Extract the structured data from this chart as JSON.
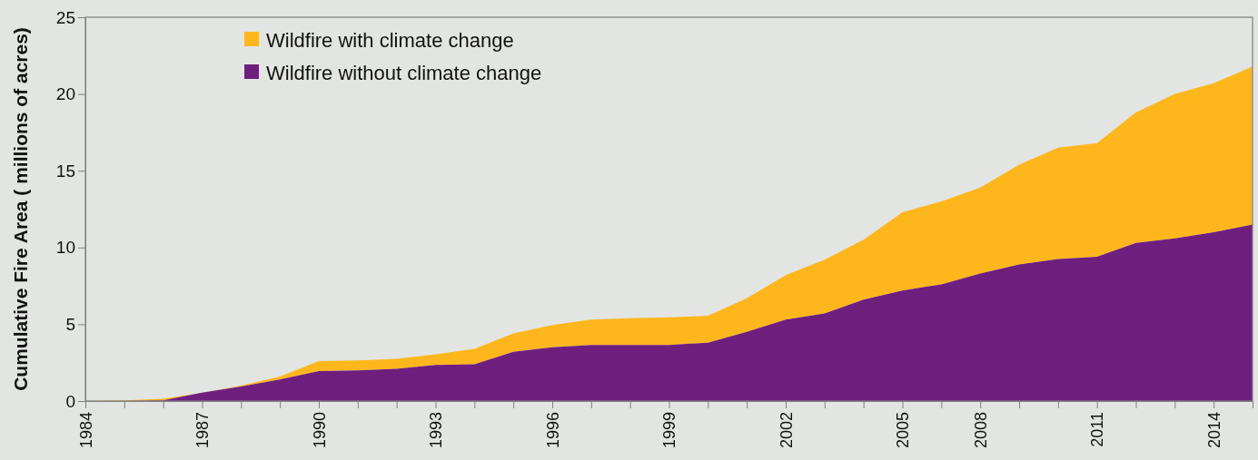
{
  "chart_data": {
    "type": "area",
    "stacked": true,
    "ylabel": "Cumulative Fire Area ( millions of acres)",
    "categories": [
      "1984",
      null,
      null,
      "1987",
      null,
      null,
      "1990",
      null,
      null,
      "1993",
      null,
      null,
      "1996",
      null,
      null,
      "1999",
      null,
      null,
      "2002",
      null,
      null,
      "2005",
      null,
      "2008",
      null,
      null,
      "2011",
      null,
      null,
      "2014",
      null
    ],
    "ylim": [
      0,
      25
    ],
    "yticks": [
      0,
      5,
      10,
      15,
      20,
      25
    ],
    "grid": false,
    "legend": "top left",
    "series": [
      {
        "name": "Wildfire without climate change",
        "color": "#6e1f7e",
        "values": [
          0,
          0,
          0.05,
          0.55,
          0.95,
          1.4,
          1.95,
          2.0,
          2.1,
          2.35,
          2.4,
          3.2,
          3.5,
          3.65,
          3.65,
          3.65,
          3.8,
          4.5,
          5.3,
          5.7,
          6.6,
          7.2,
          7.6,
          8.3,
          8.9,
          9.25,
          9.4,
          10.3,
          10.6,
          11.0,
          11.5
        ]
      },
      {
        "name": "Wildfire with climate change",
        "color": "#fdb71d",
        "values": [
          0,
          0.05,
          0.1,
          0,
          0.05,
          0.2,
          0.65,
          0.65,
          0.65,
          0.7,
          1.0,
          1.2,
          1.45,
          1.65,
          1.75,
          1.8,
          1.75,
          2.2,
          2.9,
          3.5,
          3.9,
          5.1,
          5.4,
          5.6,
          6.5,
          7.25,
          7.4,
          8.5,
          9.4,
          9.7,
          10.3
        ]
      }
    ]
  }
}
